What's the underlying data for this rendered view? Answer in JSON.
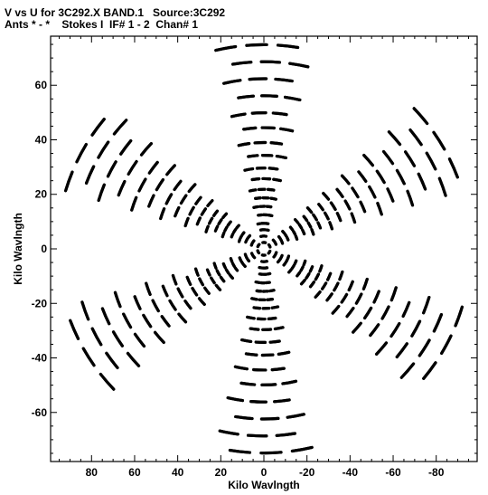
{
  "header": {
    "line1": "V vs U for 3C292.X BAND.1   Source:3C292",
    "line2": "Ants * - *    Stokes I  IF# 1 - 2  Chan# 1"
  },
  "chart_data": {
    "type": "scatter",
    "xlabel": "Kilo Wavlngth",
    "ylabel": "Kilo Wavlngth",
    "x_reversed": true,
    "xlim": [
      99,
      -99
    ],
    "ylim": [
      -78,
      78
    ],
    "xticks": [
      80,
      60,
      40,
      20,
      0,
      -20,
      -40,
      -60,
      -80
    ],
    "yticks": [
      60,
      40,
      20,
      0,
      -20,
      -40,
      -60
    ],
    "xtick_labels": [
      "80",
      "60",
      "40",
      "20",
      "0",
      "-20",
      "-40",
      "-60",
      "-80"
    ],
    "ytick_labels": [
      "60",
      "40",
      "20",
      "0",
      "-20",
      "-40",
      "-60"
    ],
    "uv_track_arms_angle_deg": [
      90,
      30,
      -30,
      270,
      210,
      150
    ],
    "uv_track_baseline_radii_klambda": [
      3,
      6,
      9,
      12,
      16,
      20,
      24,
      28,
      33,
      38,
      44,
      50,
      57,
      64,
      72,
      80,
      88,
      96
    ],
    "marker_color": "#000000"
  }
}
